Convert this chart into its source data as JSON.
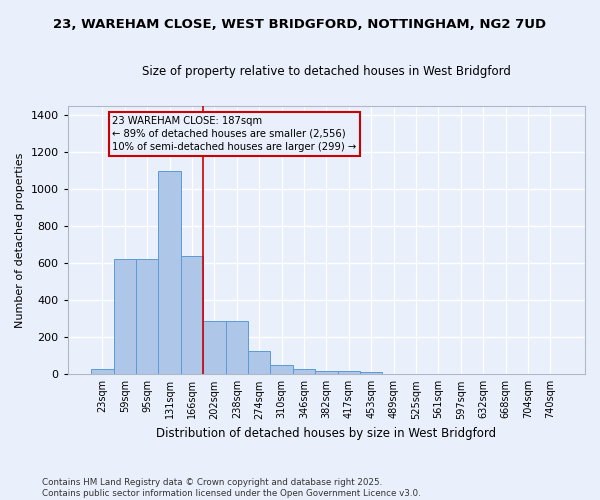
{
  "title_line1": "23, WAREHAM CLOSE, WEST BRIDGFORD, NOTTINGHAM, NG2 7UD",
  "title_line2": "Size of property relative to detached houses in West Bridgford",
  "xlabel": "Distribution of detached houses by size in West Bridgford",
  "ylabel": "Number of detached properties",
  "bin_labels": [
    "23sqm",
    "59sqm",
    "95sqm",
    "131sqm",
    "166sqm",
    "202sqm",
    "238sqm",
    "274sqm",
    "310sqm",
    "346sqm",
    "382sqm",
    "417sqm",
    "453sqm",
    "489sqm",
    "525sqm",
    "561sqm",
    "597sqm",
    "632sqm",
    "668sqm",
    "704sqm",
    "740sqm"
  ],
  "bar_values": [
    30,
    620,
    620,
    1095,
    640,
    290,
    290,
    125,
    50,
    30,
    20,
    20,
    10,
    0,
    0,
    0,
    0,
    0,
    0,
    0,
    0
  ],
  "bar_color": "#aec6e8",
  "bar_edge_color": "#5b9bd5",
  "vline_x": 4.5,
  "vline_color": "#cc0000",
  "annotation_text": "23 WAREHAM CLOSE: 187sqm\n← 89% of detached houses are smaller (2,556)\n10% of semi-detached houses are larger (299) →",
  "annotation_box_color": "#cc0000",
  "ylim": [
    0,
    1450
  ],
  "yticks": [
    0,
    200,
    400,
    600,
    800,
    1000,
    1200,
    1400
  ],
  "bg_color": "#eaf0fb",
  "grid_color": "#ffffff",
  "footer_line1": "Contains HM Land Registry data © Crown copyright and database right 2025.",
  "footer_line2": "Contains public sector information licensed under the Open Government Licence v3.0."
}
